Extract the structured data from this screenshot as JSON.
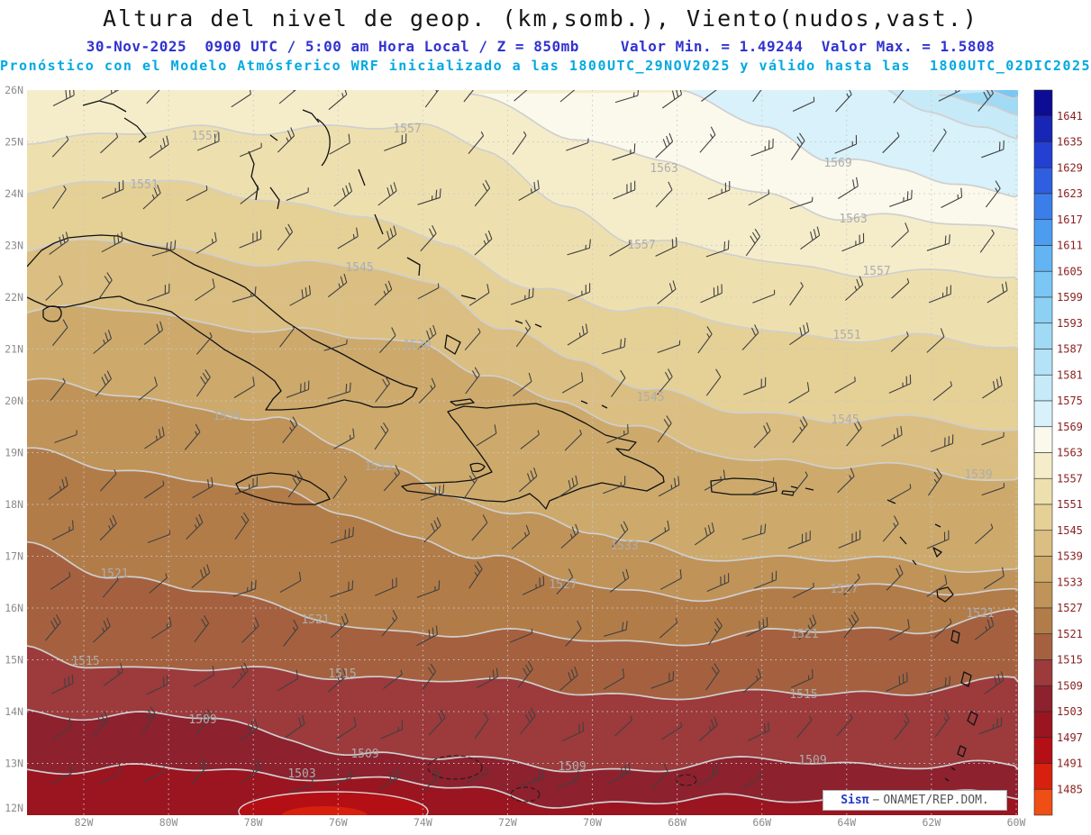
{
  "title": "Altura del nivel de geop. (km,somb.), Viento(nudos,vast.)",
  "subtitle": {
    "date_line": "30-Nov-2025  0900 UTC / 5:00 am Hora Local / Z = 850mb",
    "stats_line": "Valor Min. = 1.49244  Valor Max. = 1.5808",
    "forecast_line": "Pronóstico con el Modelo Atmósferico WRF inicializado a las 1800UTC_29NOV2025 y válido hasta las  1800UTC_02DIC2025"
  },
  "map_data": {
    "level": "850mb",
    "valid_time": "30-Nov-2025 0900 UTC / 5:00 am Hora Local",
    "value_min": 1.49244,
    "value_max": 1.5808
  },
  "axes": {
    "lat_labels": [
      "26N",
      "25N",
      "24N",
      "23N",
      "22N",
      "21N",
      "20N",
      "19N",
      "18N",
      "17N",
      "16N",
      "15N",
      "14N",
      "13N",
      "12N"
    ],
    "lon_labels": [
      "82W",
      "80W",
      "78W",
      "76W",
      "74W",
      "72W",
      "70W",
      "68W",
      "66W",
      "64W",
      "62W",
      "60W"
    ],
    "label_color": "#8c8c8c"
  },
  "colorbar": {
    "labels": [
      1641,
      1635,
      1629,
      1623,
      1617,
      1611,
      1605,
      1599,
      1593,
      1587,
      1581,
      1575,
      1569,
      1563,
      1557,
      1551,
      1545,
      1539,
      1533,
      1527,
      1521,
      1515,
      1509,
      1503,
      1497,
      1491,
      1485
    ],
    "colors": [
      "#0c0c94",
      "#1726b6",
      "#2340d2",
      "#2f5fe0",
      "#3b7eea",
      "#4c9cf0",
      "#62b4f2",
      "#7ac6f4",
      "#8cd0f4",
      "#a0daf4",
      "#b4e2f6",
      "#c6eaf8",
      "#d8f1fa",
      "#fbf9ec",
      "#f5edca",
      "#eee0ae",
      "#e5d096",
      "#dbbe81",
      "#cdaa6c",
      "#c09359",
      "#b27c49",
      "#a5613f",
      "#9c3a3c",
      "#8d212e",
      "#9a1520",
      "#b50f16",
      "#d8200e",
      "#ef4e14"
    ],
    "label_color": "#8b1f1f"
  },
  "contours": {
    "line_color": "#cfcfcf",
    "label_color": "#adadad",
    "labels": [
      [
        "1557",
        228,
        151
      ],
      [
        "1557",
        452,
        143
      ],
      [
        "1563",
        737,
        187
      ],
      [
        "1569",
        930,
        181
      ],
      [
        "1551",
        160,
        205
      ],
      [
        "1563",
        947,
        243
      ],
      [
        "1557",
        712,
        272
      ],
      [
        "1557",
        973,
        301
      ],
      [
        "1545",
        399,
        297
      ],
      [
        "1551",
        940,
        372
      ],
      [
        "1539",
        463,
        383
      ],
      [
        "1545",
        722,
        441
      ],
      [
        "1545",
        938,
        466
      ],
      [
        "1533",
        252,
        462
      ],
      [
        "1539",
        1086,
        527
      ],
      [
        "1533",
        420,
        518
      ],
      [
        "1533",
        693,
        606
      ],
      [
        "1527",
        625,
        649
      ],
      [
        "1527",
        937,
        654
      ],
      [
        "1521",
        127,
        637
      ],
      [
        "1521",
        350,
        688
      ],
      [
        "1521",
        893,
        704
      ],
      [
        "1521",
        1088,
        681
      ],
      [
        "1515",
        95,
        734
      ],
      [
        "1515",
        380,
        748
      ],
      [
        "1515",
        892,
        771
      ],
      [
        "1509",
        225,
        799
      ],
      [
        "1509",
        405,
        837
      ],
      [
        "1509",
        635,
        851
      ],
      [
        "1509",
        902,
        844
      ],
      [
        "1503",
        335,
        859
      ]
    ]
  },
  "credit": {
    "brand": "Sisπ",
    "separator": "−",
    "org": "ONAMET/REP.DOM."
  },
  "theme": {
    "title_color": "#151515",
    "date_color": "#3232d0",
    "forecast_color": "#00a9e0"
  }
}
